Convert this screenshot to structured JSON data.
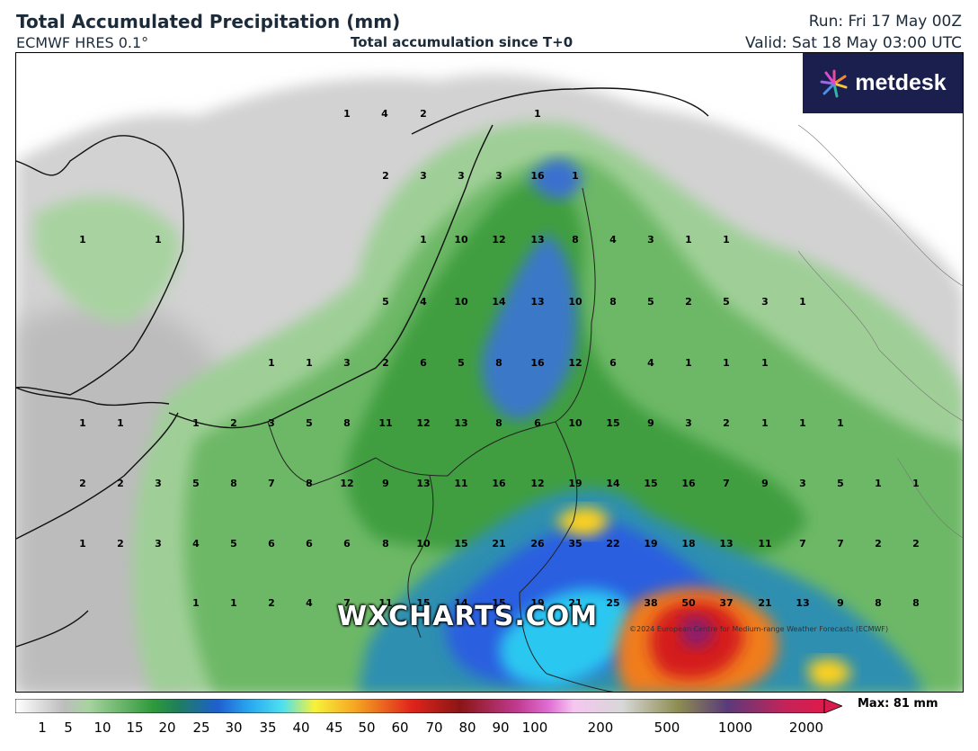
{
  "header": {
    "title": "Total Accumulated Precipitation (mm)",
    "model": "ECMWF HRES 0.1°",
    "subtitle": "Total accumulation since T+0",
    "run": "Run: Fri 17 May 00Z",
    "valid": "Valid: Sat 18 May 03:00 UTC"
  },
  "logo": {
    "text": "metdesk"
  },
  "watermark": "WXCHARTS.COM",
  "copyright": "©2024 European Centre for Medium-range Weather Forecasts (ECMWF)",
  "colorbar": {
    "ticks": [
      "1",
      "5",
      "10",
      "15",
      "20",
      "25",
      "30",
      "35",
      "40",
      "45",
      "50",
      "60",
      "70",
      "80",
      "90",
      "100",
      "200",
      "500",
      "1000",
      "2000"
    ],
    "max_label": "Max: 81 mm"
  },
  "value_labels": [
    [
      "1",
      "4",
      "2",
      "1"
    ],
    [
      "2",
      "3",
      "3",
      "3",
      "16",
      "1"
    ],
    [
      "1",
      "1",
      "1",
      "10",
      "12",
      "13",
      "8",
      "4",
      "3",
      "1",
      "1"
    ],
    [
      "5",
      "4",
      "10",
      "14",
      "13",
      "10",
      "8",
      "5",
      "2",
      "5",
      "3",
      "1"
    ],
    [
      "1",
      "1",
      "3",
      "2",
      "6",
      "5",
      "8",
      "16",
      "12",
      "6",
      "4",
      "1",
      "1",
      "1"
    ],
    [
      "1",
      "1",
      "1",
      "2",
      "3",
      "5",
      "8",
      "11",
      "12",
      "13",
      "8",
      "6",
      "10",
      "15",
      "9",
      "3",
      "2",
      "1",
      "1",
      "1"
    ],
    [
      "2",
      "2",
      "3",
      "5",
      "8",
      "7",
      "8",
      "12",
      "9",
      "13",
      "11",
      "16",
      "12",
      "19",
      "14",
      "15",
      "16",
      "7",
      "9",
      "3",
      "5",
      "1",
      "1"
    ],
    [
      "1",
      "2",
      "3",
      "4",
      "5",
      "6",
      "6",
      "6",
      "8",
      "10",
      "15",
      "21",
      "26",
      "35",
      "22",
      "19",
      "18",
      "13",
      "11",
      "7",
      "7",
      "2",
      "2"
    ],
    [
      "1",
      "1",
      "2",
      "4",
      "7",
      "11",
      "15",
      "14",
      "15",
      "19",
      "21",
      "25",
      "38",
      "50",
      "37",
      "21",
      "13",
      "9",
      "8",
      "8"
    ]
  ]
}
